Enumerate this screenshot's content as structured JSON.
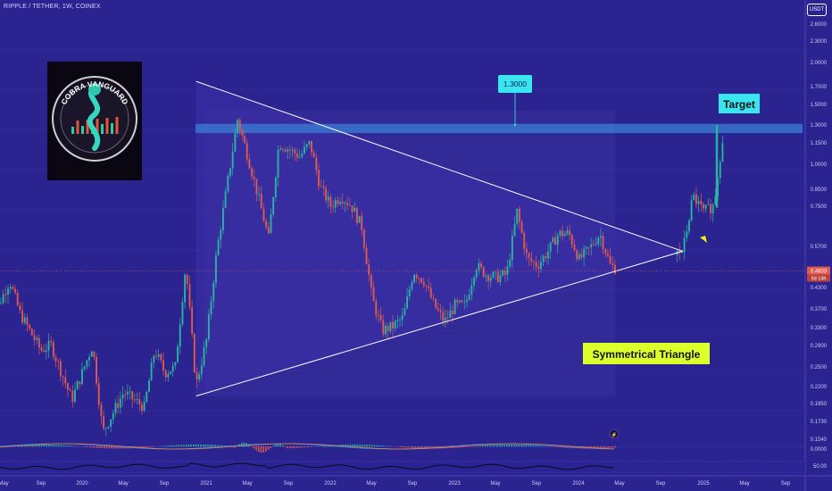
{
  "header": {
    "symbol_line": "RIPPLE / TETHER, 1W, COINEX",
    "currency_badge": "USDT"
  },
  "colors": {
    "background": "#2a2390",
    "up": "#2bb5a0",
    "down": "#e05a4f",
    "zone": "#3b7fd6",
    "triangle_line": "#ffffff",
    "target_box": "#39e6ef",
    "pattern_box": "#ddff2a"
  },
  "logo": {
    "text": "COBRA VANGUARD",
    "icon": "cobra-logo-icon"
  },
  "annotations": {
    "price_callout": "1.3000",
    "target_label": "Target",
    "pattern_label": "Symmetrical Triangle"
  },
  "price_tags": {
    "current_price": "0.4803",
    "countdown": "5d 14h"
  },
  "chart_data": {
    "type": "candlestick",
    "title": "RIPPLE / TETHER, 1W, COINEX",
    "y_scale": "log",
    "y_ticks": [
      "2.6000",
      "2.3000",
      "2.0000",
      "1.7000",
      "1.5000",
      "1.3000",
      "1.1500",
      "1.0000",
      "0.8500",
      "0.7500",
      "0.5700",
      "0.4803",
      "0.4300",
      "0.3700",
      "0.3300",
      "0.2900",
      "0.2500",
      "0.2200",
      "0.1950",
      "0.1730",
      "0.1540",
      "0.0000",
      "50.00"
    ],
    "x_ticks": [
      "May",
      "Sep",
      "2020",
      "May",
      "Sep",
      "2021",
      "May",
      "Sep",
      "2022",
      "May",
      "Sep",
      "2023",
      "May",
      "Sep",
      "2024",
      "May",
      "Sep",
      "2025",
      "May",
      "Sep"
    ],
    "resistance_zone": [
      1.23,
      1.31
    ],
    "triangle": {
      "upper_start": [
        "2020-12",
        1.75
      ],
      "lower_start": [
        "2020-12",
        0.205
      ],
      "apex": [
        "2024-11",
        0.55
      ]
    },
    "target_price": 1.3,
    "current_price": 0.4803,
    "price_path": [
      [
        "2019-04",
        0.33
      ],
      [
        "2019-06",
        0.45
      ],
      [
        "2019-07",
        0.36
      ],
      [
        "2019-09",
        0.28
      ],
      [
        "2019-10",
        0.29
      ],
      [
        "2019-12",
        0.2
      ],
      [
        "2020-01",
        0.24
      ],
      [
        "2020-02",
        0.29
      ],
      [
        "2020-03",
        0.16
      ],
      [
        "2020-05",
        0.21
      ],
      [
        "2020-07",
        0.19
      ],
      [
        "2020-08",
        0.28
      ],
      [
        "2020-09",
        0.24
      ],
      [
        "2020-10",
        0.25
      ],
      [
        "2020-11",
        0.5
      ],
      [
        "2020-12",
        0.22
      ],
      [
        "2021-01",
        0.3
      ],
      [
        "2021-02",
        0.55
      ],
      [
        "2021-04",
        1.35
      ],
      [
        "2021-05",
        1.05
      ],
      [
        "2021-06",
        0.8
      ],
      [
        "2021-07",
        0.6
      ],
      [
        "2021-08",
        1.15
      ],
      [
        "2021-09",
        1.1
      ],
      [
        "2021-10",
        1.05
      ],
      [
        "2021-11",
        1.15
      ],
      [
        "2021-12",
        0.85
      ],
      [
        "2022-01",
        0.75
      ],
      [
        "2022-02",
        0.8
      ],
      [
        "2022-03",
        0.75
      ],
      [
        "2022-04",
        0.65
      ],
      [
        "2022-05",
        0.4
      ],
      [
        "2022-06",
        0.32
      ],
      [
        "2022-07",
        0.33
      ],
      [
        "2022-08",
        0.35
      ],
      [
        "2022-09",
        0.48
      ],
      [
        "2022-10",
        0.45
      ],
      [
        "2022-11",
        0.38
      ],
      [
        "2022-12",
        0.34
      ],
      [
        "2023-01",
        0.38
      ],
      [
        "2023-02",
        0.38
      ],
      [
        "2023-03",
        0.5
      ],
      [
        "2023-04",
        0.47
      ],
      [
        "2023-05",
        0.46
      ],
      [
        "2023-06",
        0.47
      ],
      [
        "2023-07",
        0.72
      ],
      [
        "2023-08",
        0.52
      ],
      [
        "2023-09",
        0.5
      ],
      [
        "2023-10",
        0.55
      ],
      [
        "2023-11",
        0.62
      ],
      [
        "2023-12",
        0.62
      ],
      [
        "2024-01",
        0.52
      ],
      [
        "2024-02",
        0.56
      ],
      [
        "2024-03",
        0.62
      ],
      [
        "2024-04",
        0.5
      ],
      [
        "2024-05",
        0.48
      ],
      [
        "2024-11",
        0.55
      ],
      [
        "2024-12",
        0.8
      ],
      [
        "2025-01",
        0.72
      ],
      [
        "2025-02",
        0.75
      ],
      [
        "2025-03",
        1.3
      ]
    ]
  }
}
